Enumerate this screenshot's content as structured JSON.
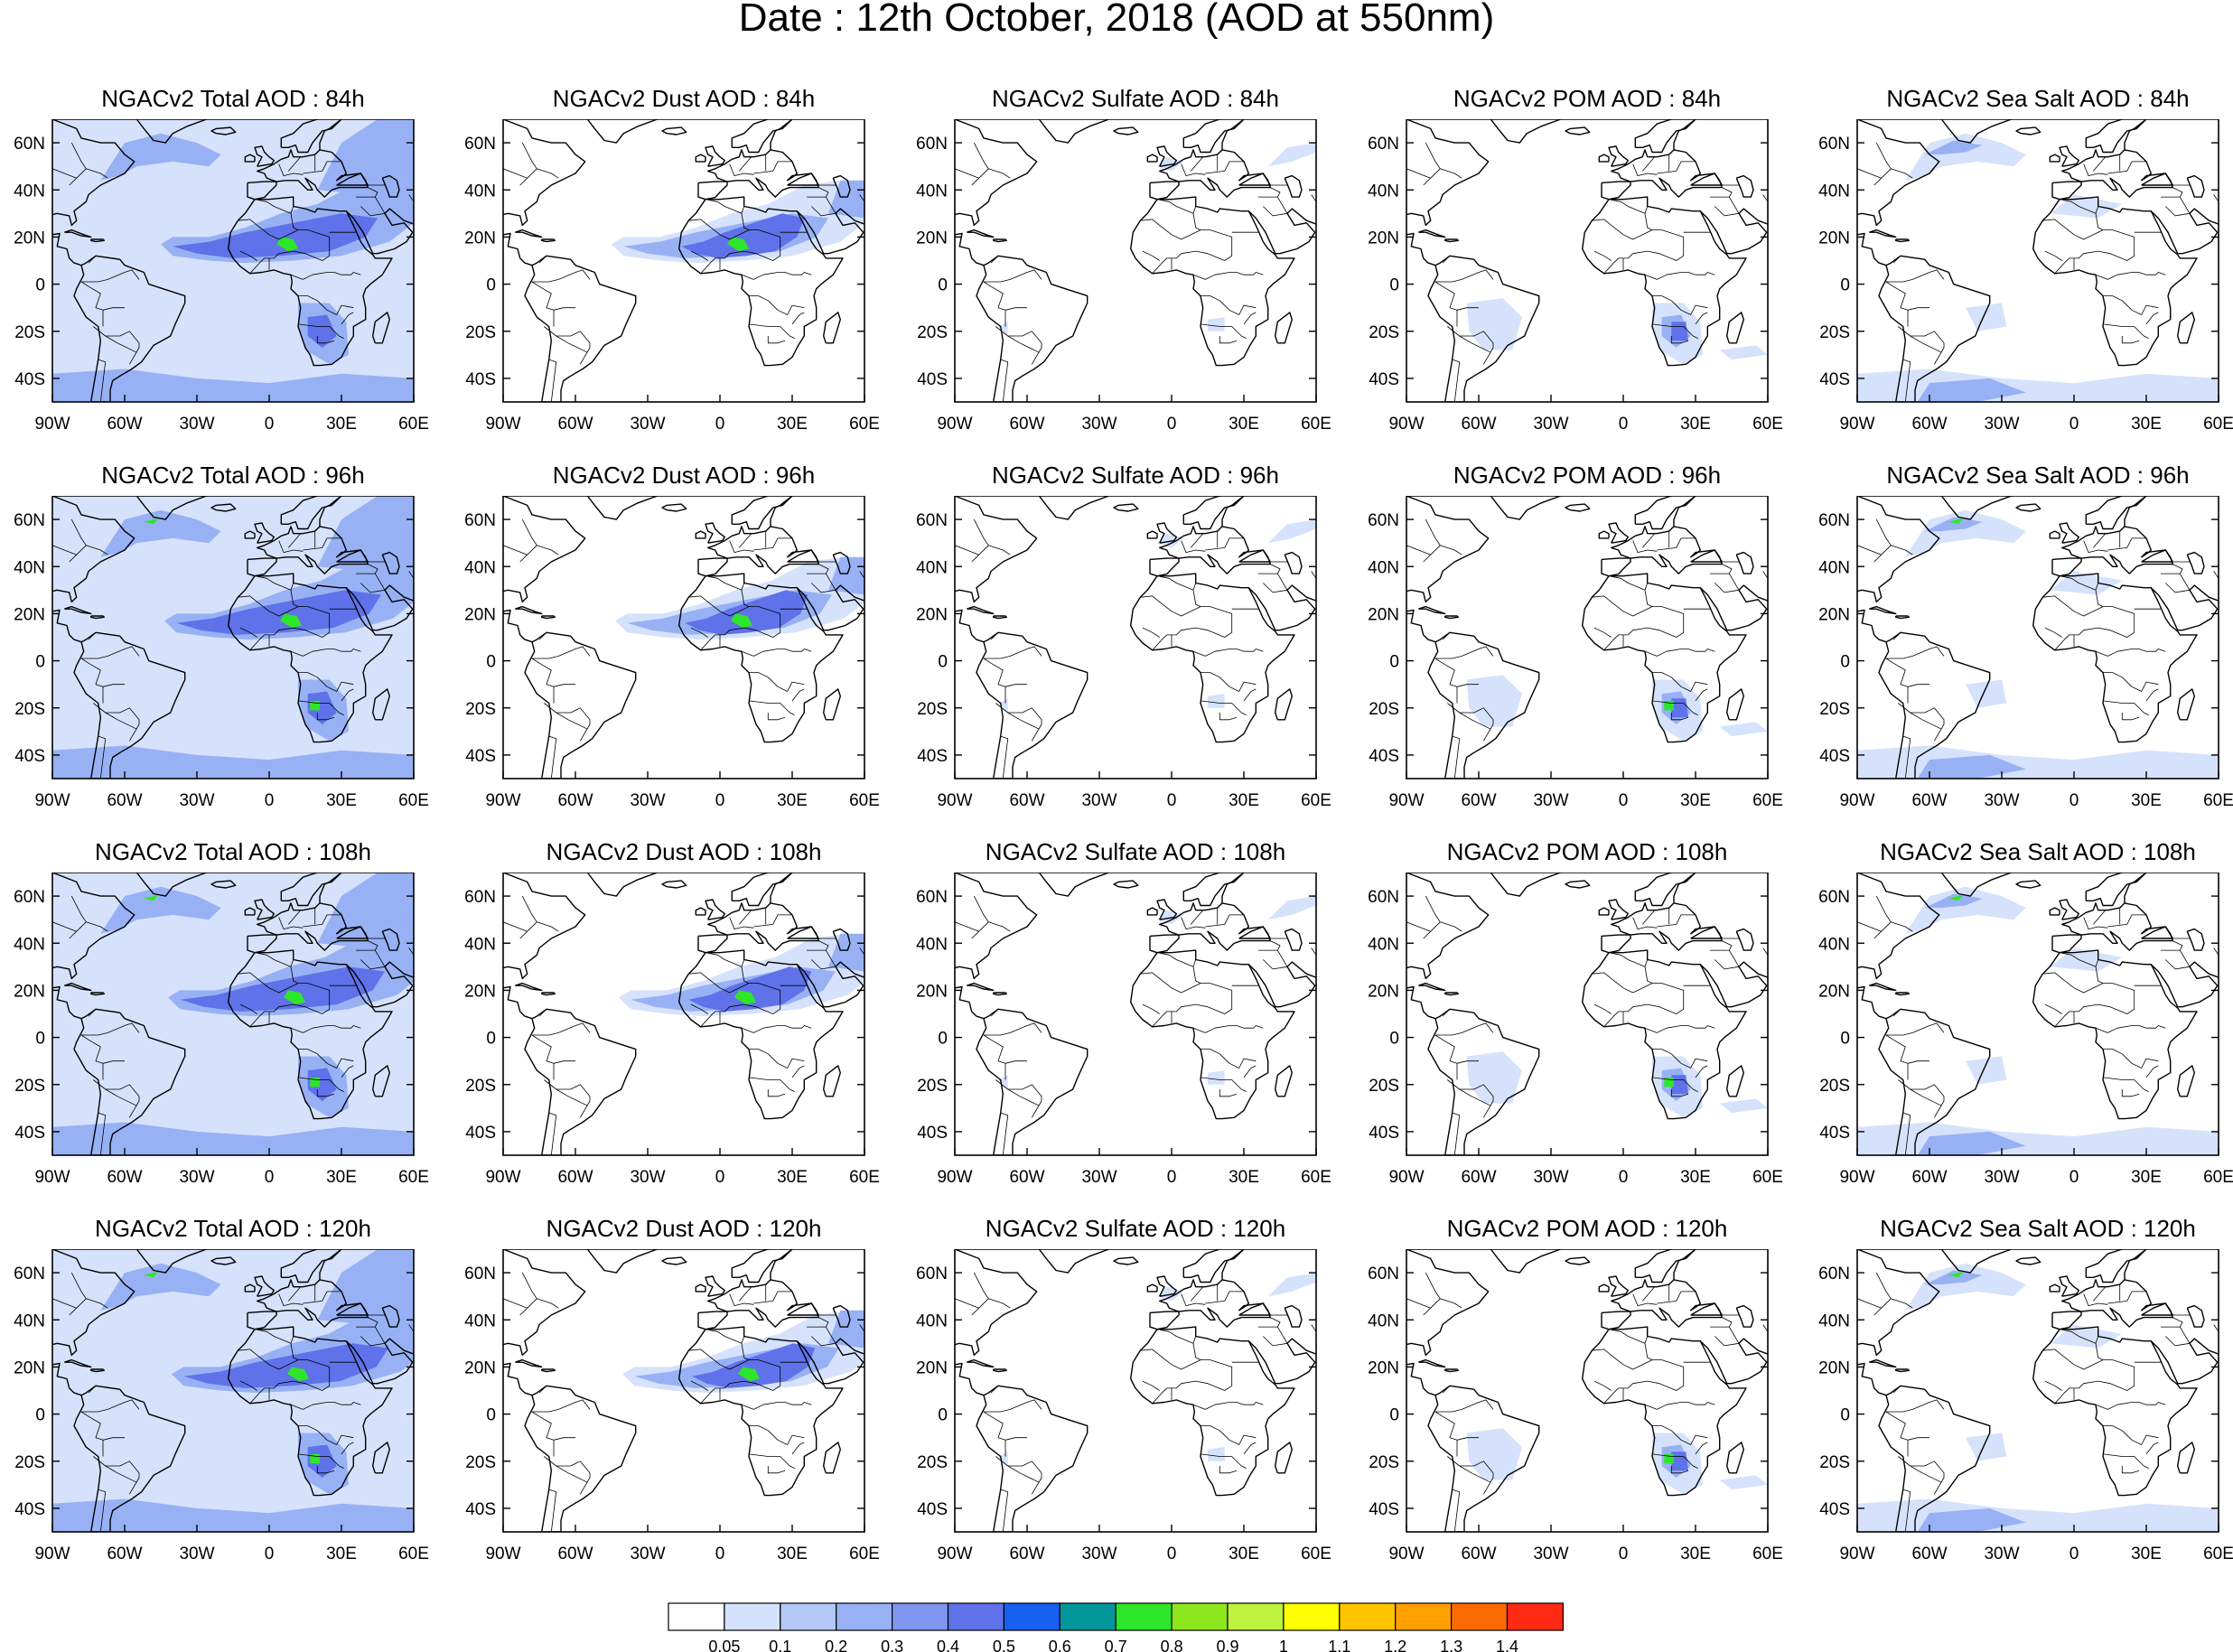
{
  "title": "Date : 12th October, 2018 (AOD at 550nm)",
  "panels": [
    [
      "NGACv2 Total AOD : 84h",
      "NGACv2 Dust AOD : 84h",
      "NGACv2 Sulfate AOD : 84h",
      "NGACv2 POM AOD : 84h",
      "NGACv2 Sea Salt AOD : 84h"
    ],
    [
      "NGACv2 Total AOD : 96h",
      "NGACv2 Dust AOD : 96h",
      "NGACv2 Sulfate AOD : 96h",
      "NGACv2 POM AOD : 96h",
      "NGACv2 Sea Salt AOD : 96h"
    ],
    [
      "NGACv2 Total AOD : 108h",
      "NGACv2 Dust AOD : 108h",
      "NGACv2 Sulfate AOD : 108h",
      "NGACv2 POM AOD : 108h",
      "NGACv2 Sea Salt AOD : 108h"
    ],
    [
      "NGACv2 Total AOD : 120h",
      "NGACv2 Dust AOD : 120h",
      "NGACv2 Sulfate AOD : 120h",
      "NGACv2 POM AOD : 120h",
      "NGACv2 Sea Salt  AOD : 120h"
    ]
  ],
  "panel_types": [
    "total",
    "dust",
    "sulfate",
    "pom",
    "seasalt"
  ],
  "lat_ticks": [
    "60N",
    "40N",
    "20N",
    "0",
    "20S",
    "40S"
  ],
  "lon_ticks": [
    "90W",
    "60W",
    "30W",
    "0",
    "30E",
    "60E"
  ],
  "colorbar": {
    "labels": [
      "0.05",
      "0.1",
      "0.2",
      "0.3",
      "0.4",
      "0.5",
      "0.6",
      "0.7",
      "0.8",
      "0.9",
      "1",
      "1.1",
      "1.2",
      "1.3",
      "1.4"
    ],
    "colors": [
      "#ffffff",
      "#d6e2fb",
      "#b4c8f8",
      "#98b1f5",
      "#7f97f0",
      "#5f72e9",
      "#1760f2",
      "#03969b",
      "#2ee62a",
      "#8de61c",
      "#bff23f",
      "#ffff00",
      "#fdc400",
      "#ff9f00",
      "#fb6a00",
      "#ff2a14"
    ]
  },
  "colors": {
    "aod_low": "#d6e2fb",
    "aod_mid": "#98b1f5",
    "aod_high": "#5f72e9",
    "aod_peak": "#2ee62a"
  }
}
